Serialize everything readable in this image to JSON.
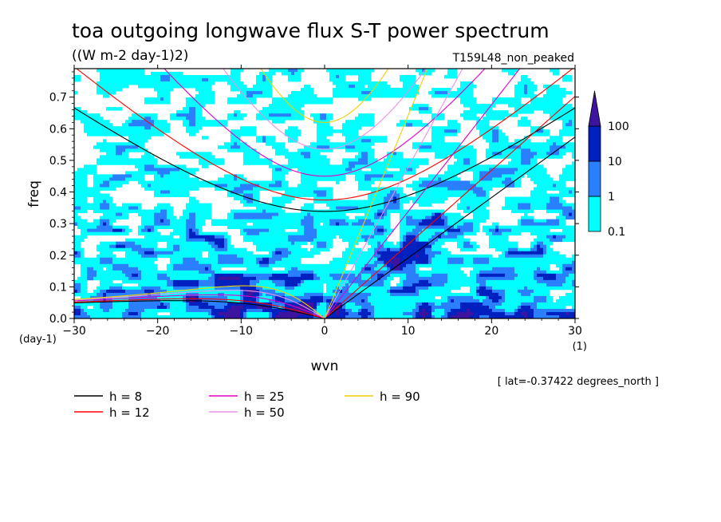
{
  "chart_data": {
    "type": "heatmap",
    "title": "toa outgoing longwave flux S-T power spectrum",
    "subtitle": "((W m-2 day-1)2)",
    "experiment": "T159L48_non_peaked",
    "xlabel": "wvn",
    "ylabel": "freq",
    "x_unit": "(1)",
    "y_unit": "(day-1)",
    "xlim": [
      -30,
      30
    ],
    "ylim": [
      0,
      0.79
    ],
    "x_ticks": [
      -30,
      -20,
      -10,
      0,
      10,
      20,
      30
    ],
    "y_ticks": [
      0.0,
      0.1,
      0.2,
      0.3,
      0.4,
      0.5,
      0.6,
      0.7
    ],
    "location_note": "[ lat=-0.37422 degrees_north ]",
    "colorbar": {
      "levels": [
        0.1,
        1,
        10,
        100
      ],
      "colors": [
        "#00ffff",
        "#2a7fff",
        "#0020c0",
        "#3c14a0"
      ],
      "label_levels": [
        "0.1",
        "1",
        "10",
        "100"
      ]
    },
    "dispersion_curves": [
      {
        "label": "h =  8",
        "h": 8,
        "color": "#000000"
      },
      {
        "label": "h = 12",
        "h": 12,
        "color": "#ff0000"
      },
      {
        "label": "h = 25",
        "h": 25,
        "color": "#e000c8"
      },
      {
        "label": "h = 50",
        "h": 50,
        "color": "#e890e8"
      },
      {
        "label": "h = 90",
        "h": 90,
        "color": "#f0d000"
      }
    ]
  }
}
